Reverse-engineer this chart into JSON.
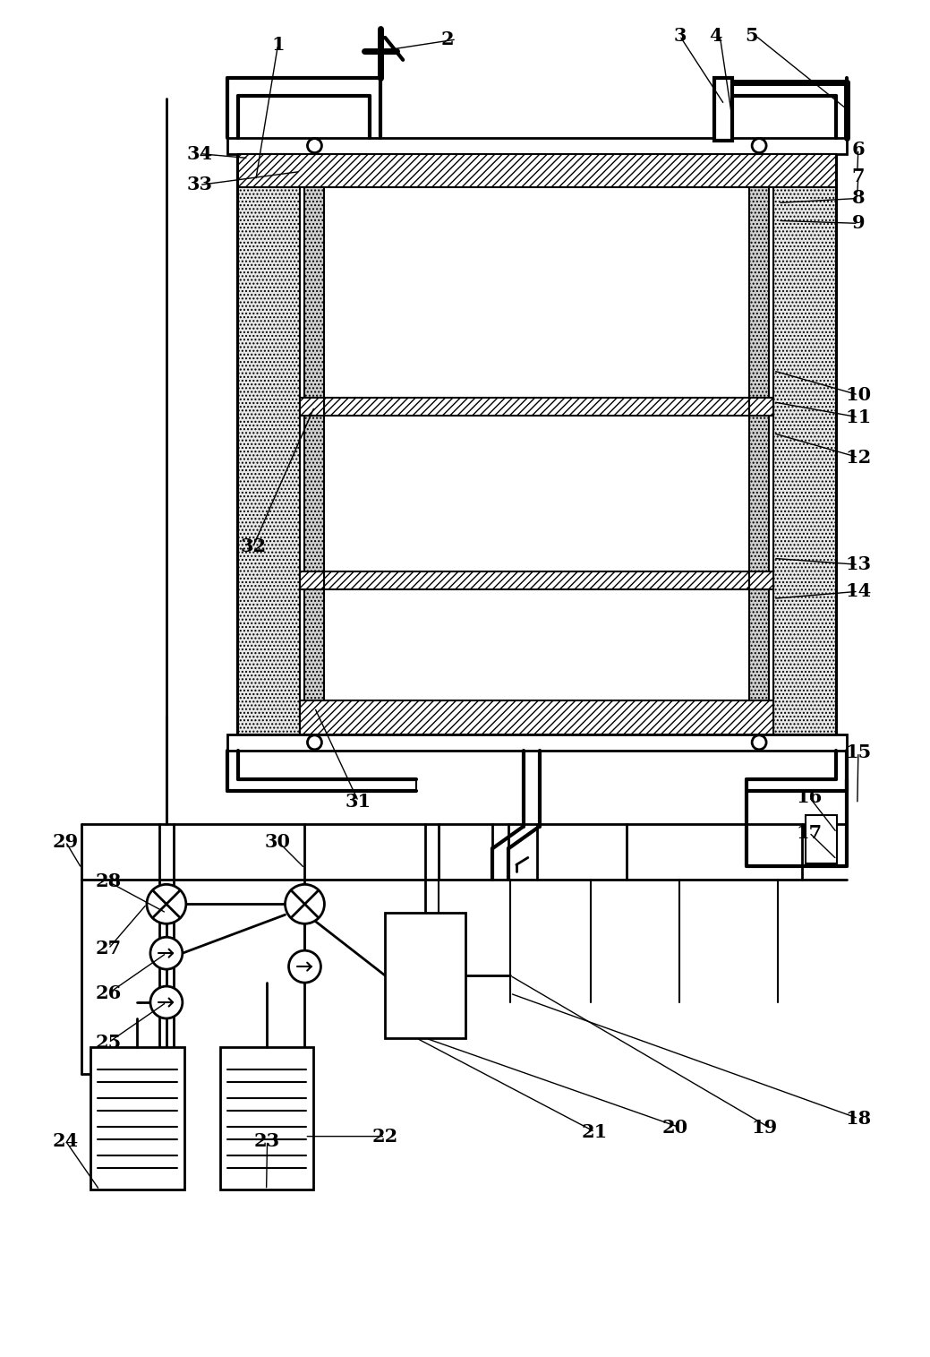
{
  "bg_color": "#ffffff",
  "line_color": "#000000",
  "fig_width": 10.39,
  "fig_height": 15.15,
  "dpi": 100
}
